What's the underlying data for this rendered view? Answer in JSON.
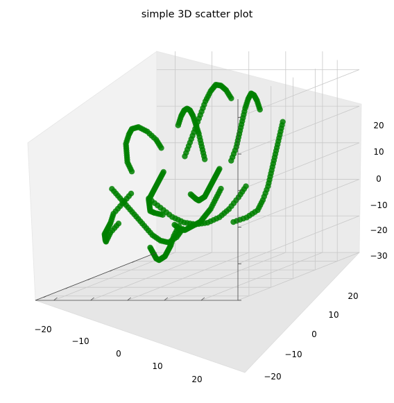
{
  "chart_data": {
    "type": "scatter",
    "projection": "3d",
    "title": "simple 3D scatter plot",
    "xlabel": "",
    "ylabel": "",
    "zlabel": "",
    "xlim": [
      -25,
      30
    ],
    "ylim": [
      -25,
      30
    ],
    "zlim": [
      -30,
      25
    ],
    "x_ticks": [
      "−20",
      "−10",
      "0",
      "10",
      "20"
    ],
    "y_ticks": [
      "−20",
      "−10",
      "0",
      "10",
      "20"
    ],
    "z_ticks": [
      "−30",
      "−20",
      "−10",
      "0",
      "10",
      "20"
    ],
    "grid": true,
    "marker_color": "#008000",
    "series": [
      {
        "description_of_structure": "",
        "points": [
          [
            -18,
            5,
            10
          ],
          [
            -17,
            3,
            12
          ],
          [
            -16,
            0,
            14
          ],
          [
            -15,
            -3,
            15
          ],
          [
            -13,
            -6,
            14
          ],
          [
            -11,
            -8,
            12
          ],
          [
            -9,
            -10,
            9
          ],
          [
            -7,
            -11,
            6
          ],
          [
            -5,
            -12,
            3
          ],
          [
            -3,
            -12,
            0
          ],
          [
            -20,
            -2,
            -2
          ],
          [
            -19,
            -5,
            -5
          ],
          [
            -18,
            -8,
            -8
          ],
          [
            -16,
            -10,
            -11
          ],
          [
            -14,
            -12,
            -13
          ],
          [
            -12,
            -14,
            -15
          ],
          [
            -10,
            -15,
            -17
          ],
          [
            -8,
            -16,
            -18
          ],
          [
            -6,
            -16,
            -16
          ],
          [
            -4,
            -15,
            -14
          ],
          [
            -15,
            8,
            -12
          ],
          [
            -14,
            6,
            -15
          ],
          [
            -12,
            4,
            -18
          ],
          [
            -10,
            2,
            -20
          ],
          [
            -8,
            0,
            -22
          ],
          [
            -6,
            -2,
            -23
          ],
          [
            -4,
            -4,
            -24
          ],
          [
            -2,
            -6,
            -24
          ],
          [
            0,
            -8,
            -23
          ],
          [
            2,
            -10,
            -22
          ],
          [
            -10,
            12,
            5
          ],
          [
            -8,
            10,
            8
          ],
          [
            -6,
            8,
            11
          ],
          [
            -4,
            6,
            13
          ],
          [
            -2,
            4,
            15
          ],
          [
            0,
            2,
            16
          ],
          [
            2,
            0,
            16
          ],
          [
            4,
            -2,
            15
          ],
          [
            6,
            -4,
            13
          ],
          [
            8,
            -6,
            10
          ],
          [
            -3,
            15,
            20
          ],
          [
            -2,
            13,
            22
          ],
          [
            -1,
            11,
            23
          ],
          [
            0,
            9,
            23
          ],
          [
            1,
            7,
            21
          ],
          [
            2,
            5,
            18
          ],
          [
            3,
            3,
            14
          ],
          [
            4,
            1,
            10
          ],
          [
            5,
            -1,
            6
          ],
          [
            6,
            -3,
            2
          ],
          [
            5,
            18,
            15
          ],
          [
            7,
            16,
            17
          ],
          [
            9,
            14,
            18
          ],
          [
            11,
            12,
            18
          ],
          [
            13,
            10,
            16
          ],
          [
            15,
            8,
            13
          ],
          [
            17,
            6,
            9
          ],
          [
            19,
            4,
            5
          ],
          [
            21,
            2,
            1
          ],
          [
            22,
            0,
            -3
          ],
          [
            12,
            20,
            10
          ],
          [
            14,
            18,
            6
          ],
          [
            16,
            16,
            2
          ],
          [
            18,
            14,
            -2
          ],
          [
            20,
            12,
            -6
          ],
          [
            22,
            10,
            -10
          ],
          [
            23,
            8,
            -14
          ],
          [
            24,
            6,
            -17
          ],
          [
            24,
            3,
            -19
          ],
          [
            23,
            0,
            -20
          ],
          [
            8,
            -14,
            -10
          ],
          [
            10,
            -12,
            -13
          ],
          [
            12,
            -10,
            -16
          ],
          [
            14,
            -8,
            -18
          ],
          [
            16,
            -6,
            -19
          ],
          [
            18,
            -4,
            -19
          ],
          [
            20,
            -2,
            -18
          ],
          [
            21,
            0,
            -16
          ],
          [
            22,
            2,
            -13
          ],
          [
            22,
            4,
            -10
          ],
          [
            -2,
            -18,
            -5
          ],
          [
            0,
            -17,
            -8
          ],
          [
            2,
            -16,
            -11
          ],
          [
            4,
            -15,
            -14
          ],
          [
            6,
            -14,
            -17
          ],
          [
            8,
            -13,
            -20
          ],
          [
            10,
            -12,
            -22
          ],
          [
            12,
            -11,
            -23
          ],
          [
            14,
            -10,
            -22
          ],
          [
            15,
            -9,
            -20
          ],
          [
            -12,
            2,
            2
          ],
          [
            -10,
            0,
            0
          ],
          [
            -8,
            -2,
            -2
          ],
          [
            -6,
            -4,
            -4
          ],
          [
            -4,
            -6,
            -6
          ],
          [
            -2,
            -8,
            -8
          ],
          [
            0,
            -9,
            -10
          ],
          [
            2,
            -10,
            -12
          ],
          [
            4,
            -10,
            -13
          ],
          [
            6,
            -9,
            -14
          ],
          [
            0,
            10,
            0
          ],
          [
            2,
            8,
            -2
          ],
          [
            4,
            6,
            -4
          ],
          [
            6,
            4,
            -6
          ],
          [
            8,
            2,
            -8
          ],
          [
            10,
            0,
            -10
          ],
          [
            12,
            -2,
            -11
          ],
          [
            14,
            -4,
            -12
          ],
          [
            16,
            -6,
            -12
          ],
          [
            17,
            -8,
            -11
          ],
          [
            -6,
            14,
            -4
          ],
          [
            -5,
            12,
            -7
          ],
          [
            -4,
            10,
            -10
          ],
          [
            -3,
            8,
            -12
          ],
          [
            -2,
            6,
            -14
          ],
          [
            -1,
            4,
            -15
          ],
          [
            0,
            2,
            -16
          ],
          [
            1,
            0,
            -17
          ],
          [
            2,
            -2,
            -17
          ],
          [
            3,
            -4,
            -16
          ]
        ]
      }
    ]
  }
}
